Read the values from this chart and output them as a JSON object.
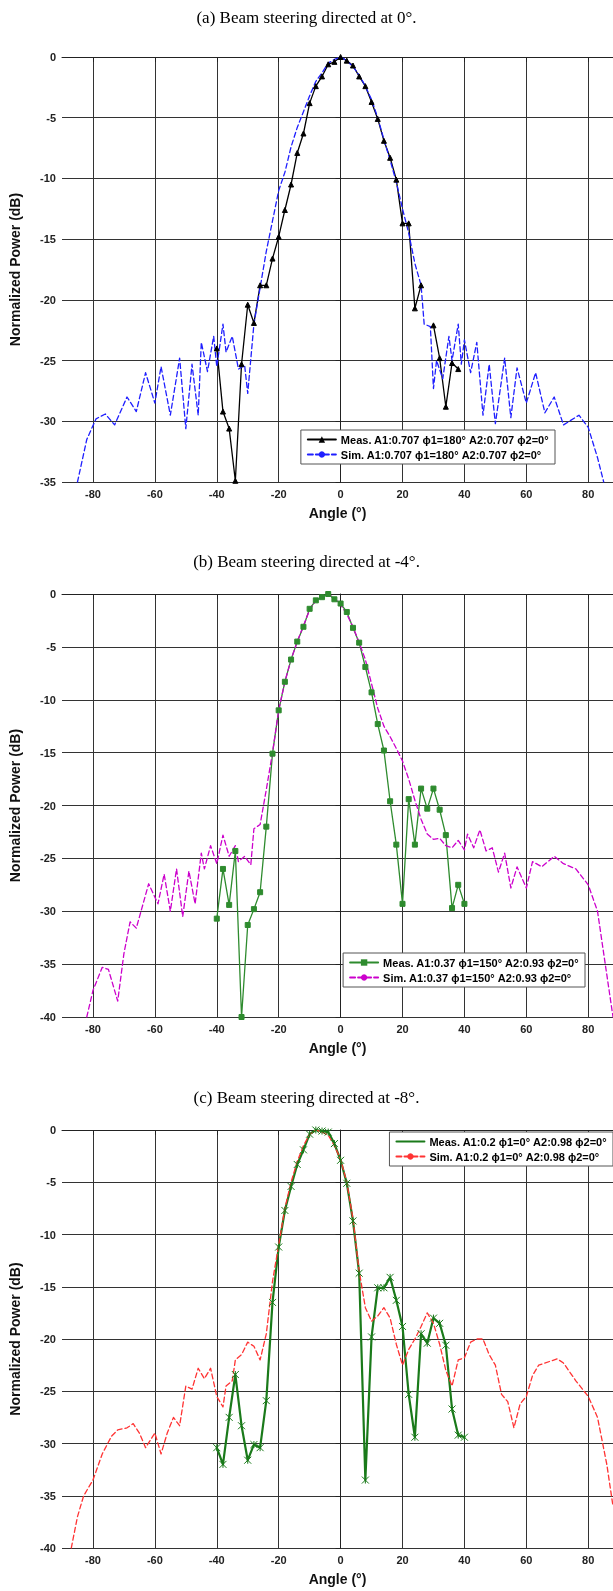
{
  "chart_data": [
    {
      "type": "line",
      "title": "(a) Beam steering directed at 0°.",
      "xlabel": "Angle (°)",
      "ylabel": "Normalized Power (dB)",
      "xlim": [
        -90,
        88
      ],
      "ylim": [
        -35,
        0
      ],
      "xticks": [
        -80,
        -60,
        -40,
        -20,
        0,
        20,
        40,
        60,
        80
      ],
      "yticks": [
        -35,
        -30,
        -25,
        -20,
        -15,
        -10,
        -5,
        0
      ],
      "grid": true,
      "legend": "bottom right",
      "series": [
        {
          "name": "Meas. A1:0.707 ϕ1=180° A2:0.707 ϕ2=0°",
          "color": "#000000",
          "marker": "triangle",
          "line_style": "solid",
          "x": [
            -40,
            -38,
            -36,
            -34,
            -32,
            -30,
            -28,
            -26,
            -24,
            -22,
            -20,
            -18,
            -16,
            -14,
            -12,
            -10,
            -8,
            -6,
            -4,
            -2,
            0,
            2,
            4,
            6,
            8,
            10,
            12,
            14,
            16,
            18,
            20,
            22,
            24,
            26,
            28,
            30,
            32,
            34,
            36,
            38
          ],
          "values": [
            -24,
            -29.2,
            -30.6,
            -34.9,
            -25.3,
            -20.4,
            -21.9,
            -18.8,
            -18.8,
            -16.6,
            -14.8,
            -12.6,
            -10.5,
            -7.9,
            -6.3,
            -3.8,
            -2.4,
            -1.6,
            -0.6,
            -0.4,
            0,
            -0.3,
            -0.7,
            -1.6,
            -2.4,
            -3.7,
            -5.1,
            -6.9,
            -8.3,
            -10.1,
            -13.7,
            -13.7,
            -20.7,
            -18.8,
            null,
            -22.1,
            -24.8,
            -28.8,
            -25.2,
            -25.7
          ]
        },
        {
          "name": "Sim. A1:0.707 ϕ1=180° A2:0.707 ϕ2=0°",
          "color": "#1f1fff",
          "marker": "none",
          "line_style": "dashed",
          "x": [
            -85,
            -82,
            -79,
            -76,
            -73,
            -69,
            -66,
            -63,
            -60,
            -58,
            -55,
            -52,
            -50,
            -48,
            -46,
            -45,
            -43,
            -41,
            -40,
            -38,
            -37,
            -35,
            -33,
            -31,
            -30,
            -28,
            -26,
            -24,
            -22,
            -20,
            -18,
            -16,
            -14,
            -12,
            -10,
            -8,
            -6,
            -4,
            -2,
            0,
            2,
            4,
            6,
            8,
            10,
            12,
            14,
            16,
            18,
            20,
            22,
            24,
            26,
            27,
            29,
            30,
            31,
            33,
            35,
            36,
            38,
            39,
            40,
            42,
            44,
            46,
            48,
            50,
            53,
            55,
            57,
            60,
            63,
            66,
            69,
            72,
            77,
            80,
            83,
            85
          ],
          "values": [
            -35,
            -31.5,
            -29.8,
            -29.4,
            -30.3,
            -28,
            -29.2,
            -26,
            -28.5,
            -25.5,
            -29.5,
            -24.8,
            -30.6,
            -25.3,
            -29.5,
            -23.5,
            -25.9,
            -23,
            -25.5,
            -22,
            -24.3,
            -23,
            -25.7,
            -25.4,
            -27.7,
            -22,
            -19,
            -16,
            -13.5,
            -11,
            -9.5,
            -7.4,
            -5.8,
            -4.5,
            -3.2,
            -2,
            -1.3,
            -0.5,
            -0.2,
            0,
            -0.3,
            -0.8,
            -1.5,
            -2.4,
            -3.5,
            -5,
            -6.8,
            -8.5,
            -10.3,
            -12.5,
            -14.5,
            -17,
            -18.8,
            -22,
            -22.2,
            -27.3,
            -25,
            -26.5,
            -23,
            -25,
            -22,
            -25.3,
            -23.3,
            -26,
            -23.5,
            -29.5,
            -25.3,
            -30.2,
            -24.8,
            -29.7,
            -25.6,
            -28.5,
            -26,
            -29.3,
            -28,
            -30.3,
            -29.5,
            -30.5,
            -33,
            -35
          ]
        }
      ]
    },
    {
      "type": "line",
      "title": "(b) Beam steering directed at -4°.",
      "xlabel": "Angle (°)",
      "ylabel": "Normalized Power (dB)",
      "xlim": [
        -90,
        88
      ],
      "ylim": [
        -40,
        0
      ],
      "xticks": [
        -80,
        -60,
        -40,
        -20,
        0,
        20,
        40,
        60,
        80
      ],
      "yticks": [
        -40,
        -35,
        -30,
        -25,
        -20,
        -15,
        -10,
        -5,
        0
      ],
      "grid": true,
      "legend": "bottom right",
      "series": [
        {
          "name": "Meas. A1:0.37 ϕ1=150° A2:0.93 ϕ2=0°",
          "color": "#2e8b2e",
          "marker": "square",
          "line_style": "solid",
          "x": [
            -40,
            -38,
            -36,
            -34,
            -32,
            -30,
            -28,
            -26,
            -24,
            -22,
            -20,
            -18,
            -16,
            -14,
            -12,
            -10,
            -8,
            -6,
            -4,
            -2,
            0,
            2,
            4,
            6,
            8,
            10,
            12,
            14,
            16,
            18,
            20,
            22,
            24,
            26,
            28,
            30,
            32,
            34,
            36,
            38,
            40
          ],
          "values": [
            -30.7,
            -26,
            -29.4,
            -24.3,
            -40,
            -31.3,
            -29.8,
            -28.2,
            -22,
            -15.1,
            -11,
            -8.3,
            -6.2,
            -4.5,
            -3.1,
            -1.4,
            -0.6,
            -0.3,
            0,
            -0.5,
            -0.9,
            -1.7,
            -3.2,
            -4.6,
            -6.9,
            -9.3,
            -12.3,
            -14.8,
            -19.6,
            -23.7,
            -29.3,
            -19.4,
            -23.7,
            -18.4,
            -20.3,
            -18.4,
            -20.4,
            -22.8,
            -29.7,
            -27.5,
            -29.3
          ]
        },
        {
          "name": "Sim. A1:0.37 ϕ1=150° A2:0.93 ϕ2=0°",
          "color": "#cc00cc",
          "marker": "none",
          "line_style": "dashed",
          "x": [
            -82,
            -80,
            -77,
            -75,
            -72,
            -70,
            -68,
            -66,
            -64,
            -62,
            -59,
            -57,
            -55,
            -53,
            -51,
            -49,
            -47,
            -45,
            -44,
            -42,
            -40,
            -38,
            -36,
            -34,
            -33,
            -31,
            -29,
            -28,
            -26,
            -24,
            -22,
            -20,
            -18,
            -16,
            -14,
            -12,
            -10,
            -8,
            -6,
            -4,
            -2,
            0,
            2,
            4,
            6,
            8,
            10,
            12,
            14,
            16,
            18,
            20,
            22,
            24,
            26,
            28,
            30,
            32,
            34,
            36,
            38,
            40,
            41,
            43,
            45,
            47,
            49,
            51,
            53,
            55,
            57,
            60,
            62,
            65,
            69,
            72,
            76,
            80,
            83,
            85,
            88
          ],
          "values": [
            -40,
            -37.5,
            -35.3,
            -35.5,
            -38.5,
            -34,
            -31,
            -31.6,
            -29.5,
            -27.4,
            -29.3,
            -26.5,
            -30,
            -26,
            -30.5,
            -26.2,
            -29.3,
            -24.5,
            -26,
            -23.8,
            -25.5,
            -22.8,
            -24.8,
            -23.8,
            -25.3,
            -24.8,
            -25.6,
            -22.2,
            -21.8,
            -18.5,
            -15,
            -11,
            -8.3,
            -6.2,
            -4.5,
            -3,
            -1.5,
            -0.6,
            -0.2,
            0,
            -0.4,
            -1,
            -1.9,
            -3.1,
            -4.6,
            -6.2,
            -8.5,
            -10.8,
            -12.5,
            -13.5,
            -14.6,
            -15.8,
            -17.5,
            -19.5,
            -21.3,
            -22.7,
            -23.2,
            -23.1,
            -23.8,
            -24,
            -23.3,
            -24.2,
            -22.7,
            -24,
            -22.3,
            -24.3,
            -24,
            -26.3,
            -24.5,
            -27.8,
            -25.8,
            -27.8,
            -25.3,
            -25.8,
            -24.8,
            -25.5,
            -26,
            -27.5,
            -30,
            -34,
            -40
          ]
        }
      ]
    },
    {
      "type": "line",
      "title": "(c) Beam steering directed at -8°.",
      "xlabel": "Angle (°)",
      "ylabel": "Normalized Power (dB)",
      "xlim": [
        -90,
        88
      ],
      "ylim": [
        -40,
        0
      ],
      "xticks": [
        -80,
        -60,
        -40,
        -20,
        0,
        20,
        40,
        60,
        80
      ],
      "yticks": [
        -40,
        -35,
        -30,
        -25,
        -20,
        -15,
        -10,
        -5,
        0
      ],
      "grid": true,
      "legend": "top right",
      "series": [
        {
          "name": "Meas. A1:0.2 ϕ1=0° A2:0.98 ϕ2=0°",
          "color": "#1a7a1a",
          "marker": "cross",
          "line_style": "solid",
          "x": [
            -40,
            -38,
            -36,
            -34,
            -32,
            -30,
            -28,
            -26,
            -24,
            -22,
            -20,
            -18,
            -16,
            -14,
            -12,
            -10,
            -8,
            -6,
            -4,
            -2,
            0,
            2,
            4,
            6,
            8,
            10,
            12,
            14,
            16,
            18,
            20,
            22,
            24,
            26,
            28,
            30,
            32,
            34,
            36,
            38,
            40
          ],
          "values": [
            -30.4,
            -32,
            -27.5,
            -23.4,
            -28.3,
            -31.6,
            -30.1,
            -30.4,
            -25.9,
            -16.5,
            -11.2,
            -7.7,
            -5.4,
            -3.3,
            -1.9,
            -0.4,
            0,
            -0.1,
            -0.2,
            -1.3,
            -2.9,
            -5.1,
            -8.7,
            -13.7,
            -33.5,
            -19.8,
            -15.1,
            -15.1,
            -14.1,
            -16.3,
            -18.8,
            -25.3,
            -29.4,
            -19.5,
            -20.4,
            -18,
            -18.5,
            -20.6,
            -26.7,
            -29.2,
            -29.4
          ]
        },
        {
          "name": "Sim. A1:0.2 ϕ1=0° A2:0.98 ϕ2=0°",
          "color": "#ff3333",
          "marker": "none",
          "line_style": "dashed",
          "x": [
            -87,
            -85,
            -83,
            -80,
            -77,
            -74,
            -72,
            -69,
            -67,
            -65,
            -63,
            -60,
            -58,
            -56,
            -54,
            -52,
            -50,
            -48,
            -46,
            -44,
            -42,
            -40,
            -38,
            -37,
            -35,
            -34,
            -32,
            -30,
            -28,
            -26,
            -24,
            -22,
            -20,
            -18,
            -16,
            -14,
            -12,
            -10,
            -8,
            -6,
            -4,
            -2,
            0,
            2,
            4,
            6,
            8,
            10,
            12,
            14,
            16,
            18,
            20,
            22,
            24,
            26,
            28,
            30,
            32,
            34,
            36,
            38,
            40,
            42,
            44,
            46,
            48,
            50,
            52,
            54,
            56,
            58,
            60,
            62,
            64,
            68,
            70,
            72,
            76,
            80,
            83,
            86,
            88
          ],
          "values": [
            -40,
            -37,
            -35,
            -33.5,
            -31,
            -29.3,
            -28.7,
            -28.5,
            -28.1,
            -29,
            -30.4,
            -29,
            -31,
            -29,
            -27.5,
            -28.3,
            -24.5,
            -24.8,
            -22.8,
            -23.8,
            -22.8,
            -25.5,
            -26.5,
            -24.5,
            -24,
            -22,
            -21.5,
            -20.3,
            -20.7,
            -22,
            -19.5,
            -14.5,
            -11,
            -7.5,
            -5,
            -3,
            -1.5,
            -0.4,
            0,
            -0.2,
            -0.5,
            -1.5,
            -2.8,
            -5,
            -8.5,
            -13.5,
            -17,
            -18.3,
            -17.8,
            -17,
            -18,
            -20.5,
            -22.5,
            -21,
            -20,
            -18.8,
            -17.5,
            -18.5,
            -20.5,
            -23,
            -24.5,
            -22,
            -21.8,
            -20.3,
            -20,
            -20,
            -21.5,
            -22.5,
            -25.3,
            -26,
            -28.5,
            -26.2,
            -25.5,
            -23.5,
            -22.5,
            -22.1,
            -21.9,
            -22.3,
            -24,
            -25.5,
            -27.5,
            -32,
            -36
          ]
        }
      ]
    }
  ]
}
